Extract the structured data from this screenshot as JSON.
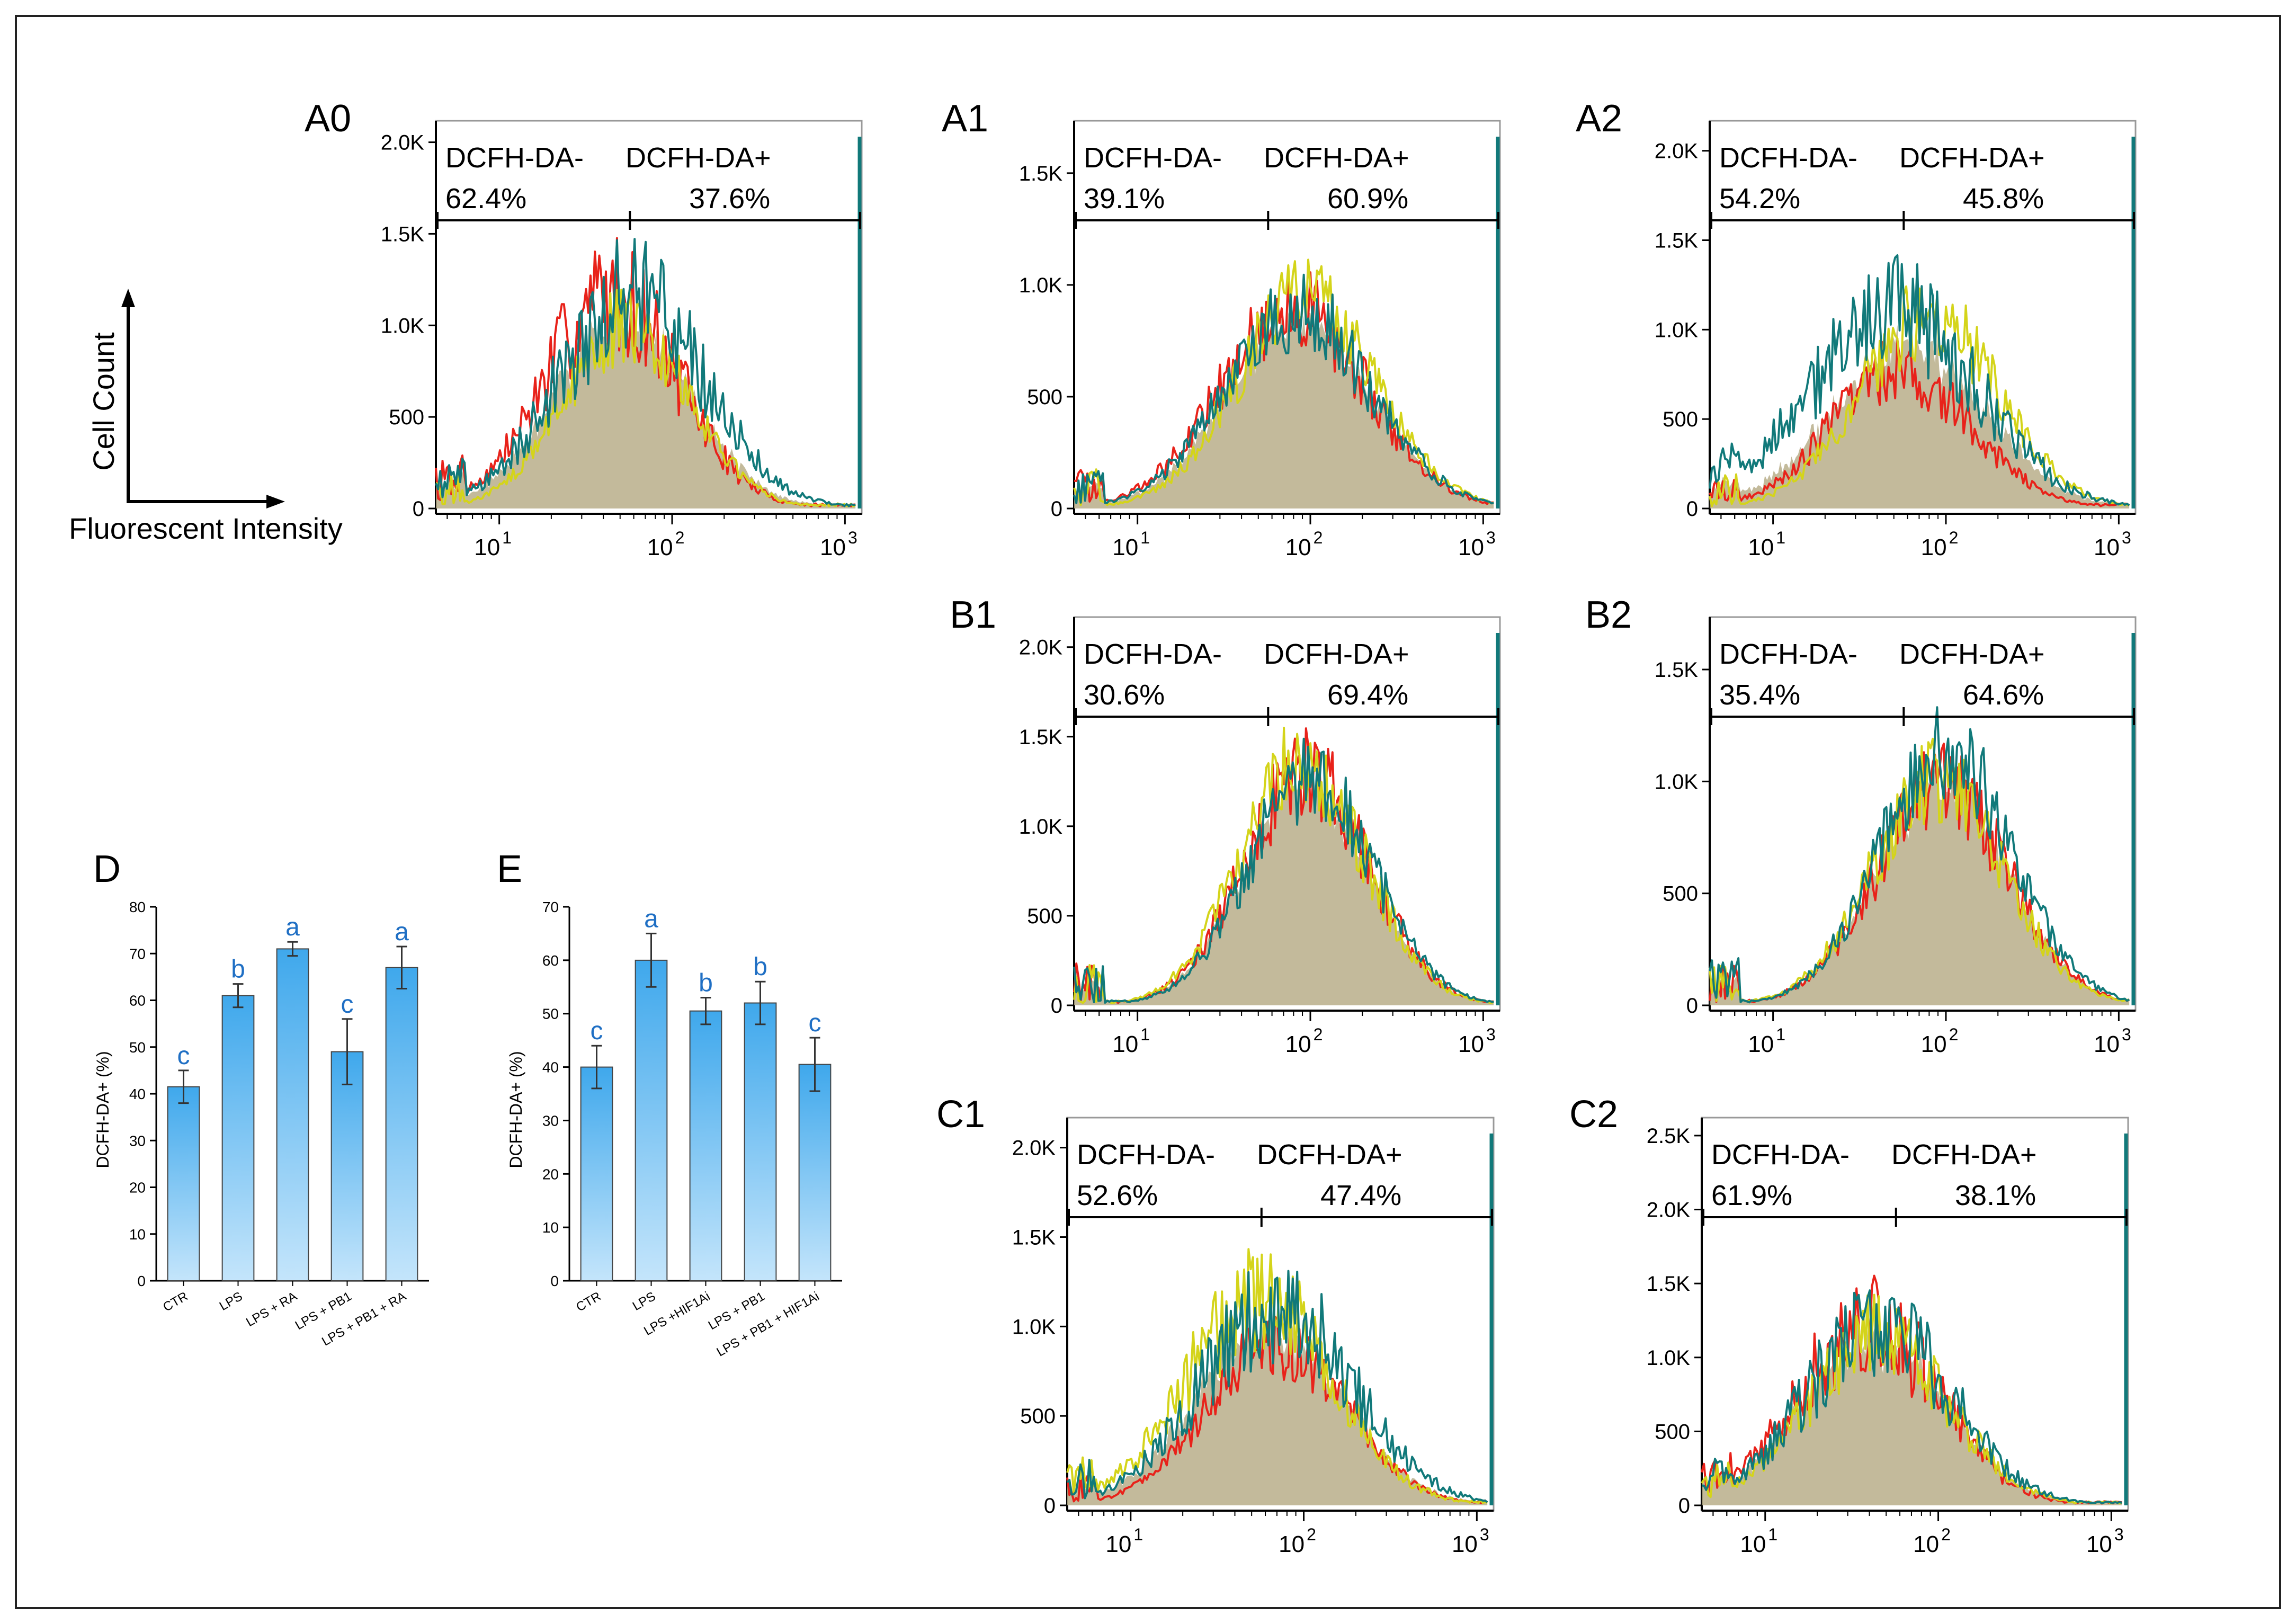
{
  "figure": {
    "legend_axes": {
      "ylabel": "Cell Count",
      "xlabel": "Fluorescent Intensity"
    }
  },
  "colors": {
    "red": "#e8221a",
    "yellow": "#d4d41a",
    "teal": "#11797a",
    "fill": "#b8ae8a",
    "bar_top": "#3fa8ec",
    "bar_bottom": "#c4e5fb",
    "sig_letter": "#1f6fc4"
  },
  "chart_data": [
    {
      "panel": "A0",
      "type": "histogram",
      "xscale": "log",
      "x_ticks": [
        "10",
        "10",
        "10"
      ],
      "x_tick_exponents": [
        "1",
        "2",
        "3"
      ],
      "y_ticks": [
        "0",
        "500",
        "1.0K",
        "1.5K",
        "2.0K"
      ],
      "y_tick_values": [
        0,
        500,
        1000,
        1500,
        2000
      ],
      "ylim": [
        0,
        2100
      ],
      "gate_threshold": 57,
      "gate_neg": {
        "label": "DCFH-DA-",
        "percent": "62.4%"
      },
      "gate_pos": {
        "label": "DCFH-DA+",
        "percent": "37.6%"
      },
      "series": [
        {
          "name": "red",
          "peak_x": 45,
          "peak_y": 1180,
          "width": 0.38,
          "noise": 0.28
        },
        {
          "name": "yellow",
          "peak_x": 55,
          "peak_y": 1000,
          "width": 0.36,
          "noise": 0.22
        },
        {
          "name": "teal",
          "peak_x": 58,
          "peak_y": 1150,
          "width": 0.42,
          "noise": 0.3
        }
      ]
    },
    {
      "panel": "A1",
      "type": "histogram",
      "xscale": "log",
      "x_ticks": [
        "10",
        "10",
        "10"
      ],
      "x_tick_exponents": [
        "1",
        "2",
        "3"
      ],
      "y_ticks": [
        "0",
        "500",
        "1.0K",
        "1.5K"
      ],
      "y_tick_values": [
        0,
        500,
        1000,
        1500
      ],
      "ylim": [
        0,
        1720
      ],
      "gate_threshold": 57,
      "gate_neg": {
        "label": "DCFH-DA-",
        "percent": "39.1%"
      },
      "gate_pos": {
        "label": "DCFH-DA+",
        "percent": "60.9%"
      },
      "series": [
        {
          "name": "red",
          "peak_x": 80,
          "peak_y": 900,
          "width": 0.42,
          "noise": 0.22
        },
        {
          "name": "yellow",
          "peak_x": 95,
          "peak_y": 950,
          "width": 0.4,
          "noise": 0.2
        },
        {
          "name": "teal",
          "peak_x": 85,
          "peak_y": 880,
          "width": 0.42,
          "noise": 0.22
        }
      ]
    },
    {
      "panel": "A2",
      "type": "histogram",
      "xscale": "log",
      "x_ticks": [
        "10",
        "10",
        "10"
      ],
      "x_tick_exponents": [
        "1",
        "2",
        "3"
      ],
      "y_ticks": [
        "0",
        "500",
        "1.0K",
        "1.5K",
        "2.0K"
      ],
      "y_tick_values": [
        0,
        500,
        1000,
        1500,
        2000
      ],
      "ylim": [
        0,
        2150
      ],
      "gate_threshold": 57,
      "gate_neg": {
        "label": "DCFH-DA-",
        "percent": "54.2%"
      },
      "gate_pos": {
        "label": "DCFH-DA+",
        "percent": "45.8%"
      },
      "series": [
        {
          "name": "red",
          "peak_x": 55,
          "peak_y": 780,
          "width": 0.4,
          "noise": 0.25
        },
        {
          "name": "yellow",
          "peak_x": 80,
          "peak_y": 1080,
          "width": 0.4,
          "noise": 0.22
        },
        {
          "name": "teal",
          "peak_x": 50,
          "peak_y": 1100,
          "width": 0.48,
          "noise": 0.3
        }
      ]
    },
    {
      "panel": "B1",
      "type": "histogram",
      "xscale": "log",
      "x_ticks": [
        "10",
        "10",
        "10"
      ],
      "x_tick_exponents": [
        "1",
        "2",
        "3"
      ],
      "y_ticks": [
        "0",
        "500",
        "1.0K",
        "1.5K",
        "2.0K"
      ],
      "y_tick_values": [
        0,
        500,
        1000,
        1500,
        2000
      ],
      "ylim": [
        0,
        2150
      ],
      "gate_threshold": 57,
      "gate_neg": {
        "label": "DCFH-DA-",
        "percent": "30.6%"
      },
      "gate_pos": {
        "label": "DCFH-DA+",
        "percent": "69.4%"
      },
      "series": [
        {
          "name": "red",
          "peak_x": 95,
          "peak_y": 1300,
          "width": 0.36,
          "noise": 0.2
        },
        {
          "name": "yellow",
          "peak_x": 90,
          "peak_y": 1350,
          "width": 0.36,
          "noise": 0.2
        },
        {
          "name": "teal",
          "peak_x": 100,
          "peak_y": 1280,
          "width": 0.36,
          "noise": 0.2
        }
      ]
    },
    {
      "panel": "B2",
      "type": "histogram",
      "xscale": "log",
      "x_ticks": [
        "10",
        "10",
        "10"
      ],
      "x_tick_exponents": [
        "1",
        "2",
        "3"
      ],
      "y_ticks": [
        "0",
        "500",
        "1.0K",
        "1.5K"
      ],
      "y_tick_values": [
        0,
        500,
        1000,
        1500
      ],
      "ylim": [
        0,
        1720
      ],
      "gate_threshold": 57,
      "gate_neg": {
        "label": "DCFH-DA-",
        "percent": "35.4%"
      },
      "gate_pos": {
        "label": "DCFH-DA+",
        "percent": "64.6%"
      },
      "series": [
        {
          "name": "red",
          "peak_x": 95,
          "peak_y": 980,
          "width": 0.38,
          "noise": 0.2
        },
        {
          "name": "yellow",
          "peak_x": 90,
          "peak_y": 1000,
          "width": 0.38,
          "noise": 0.2
        },
        {
          "name": "teal",
          "peak_x": 100,
          "peak_y": 1150,
          "width": 0.38,
          "noise": 0.2
        }
      ]
    },
    {
      "panel": "C1",
      "type": "histogram",
      "xscale": "log",
      "x_ticks": [
        "10",
        "10",
        "10"
      ],
      "x_tick_exponents": [
        "1",
        "2",
        "3"
      ],
      "y_ticks": [
        "0",
        "500",
        "1.0K",
        "1.5K",
        "2.0K"
      ],
      "y_tick_values": [
        0,
        500,
        1000,
        1500,
        2000
      ],
      "ylim": [
        0,
        2150
      ],
      "gate_threshold": 57,
      "gate_neg": {
        "label": "DCFH-DA-",
        "percent": "52.6%"
      },
      "gate_pos": {
        "label": "DCFH-DA+",
        "percent": "47.4%"
      },
      "series": [
        {
          "name": "red",
          "peak_x": 70,
          "peak_y": 900,
          "width": 0.4,
          "noise": 0.22
        },
        {
          "name": "yellow",
          "peak_x": 55,
          "peak_y": 1150,
          "width": 0.42,
          "noise": 0.28
        },
        {
          "name": "teal",
          "peak_x": 70,
          "peak_y": 1100,
          "width": 0.44,
          "noise": 0.28
        }
      ]
    },
    {
      "panel": "C2",
      "type": "histogram",
      "xscale": "log",
      "x_ticks": [
        "10",
        "10",
        "10"
      ],
      "x_tick_exponents": [
        "1",
        "2",
        "3"
      ],
      "y_ticks": [
        "0",
        "500",
        "1.0K",
        "1.5K",
        "2.0K",
        "2.5K"
      ],
      "y_tick_values": [
        0,
        500,
        1000,
        1500,
        2000,
        2500
      ],
      "ylim": [
        0,
        2600
      ],
      "gate_threshold": 57,
      "gate_neg": {
        "label": "DCFH-DA-",
        "percent": "61.9%"
      },
      "gate_pos": {
        "label": "DCFH-DA+",
        "percent": "38.1%"
      },
      "series": [
        {
          "name": "red",
          "peak_x": 40,
          "peak_y": 1250,
          "width": 0.4,
          "noise": 0.3
        },
        {
          "name": "yellow",
          "peak_x": 45,
          "peak_y": 1150,
          "width": 0.4,
          "noise": 0.25
        },
        {
          "name": "teal",
          "peak_x": 45,
          "peak_y": 1200,
          "width": 0.42,
          "noise": 0.3
        }
      ]
    },
    {
      "panel": "D",
      "type": "bar",
      "categories": [
        "CTR",
        "LPS",
        "LPS + RA",
        "LPS + PB1",
        "LPS + PB1 + RA"
      ],
      "values": [
        41.5,
        61,
        71,
        49,
        67
      ],
      "errors": [
        3.5,
        2.5,
        1.5,
        7,
        4.5
      ],
      "letters": [
        "c",
        "b",
        "a",
        "c",
        "a"
      ],
      "ylabel": "DCFH-DA+ (%)",
      "ylim": [
        0,
        80
      ],
      "y_ticks": [
        "0",
        "10",
        "20",
        "30",
        "40",
        "50",
        "60",
        "70",
        "80"
      ],
      "y_tick_values": [
        0,
        10,
        20,
        30,
        40,
        50,
        60,
        70,
        80
      ]
    },
    {
      "panel": "E",
      "type": "bar",
      "categories": [
        "CTR",
        "LPS",
        "LPS +HIF1Ai",
        "LPS + PB1",
        "LPS + PB1 + HIF1Ai"
      ],
      "values": [
        40,
        60,
        50.5,
        52,
        40.5
      ],
      "errors": [
        4,
        5,
        2.5,
        4,
        5
      ],
      "letters": [
        "c",
        "a",
        "b",
        "b",
        "c"
      ],
      "ylabel": "DCFH-DA+ (%)",
      "ylim": [
        0,
        70
      ],
      "y_ticks": [
        "0",
        "10",
        "20",
        "30",
        "40",
        "50",
        "60",
        "70"
      ],
      "y_tick_values": [
        0,
        10,
        20,
        30,
        40,
        50,
        60,
        70
      ]
    }
  ]
}
